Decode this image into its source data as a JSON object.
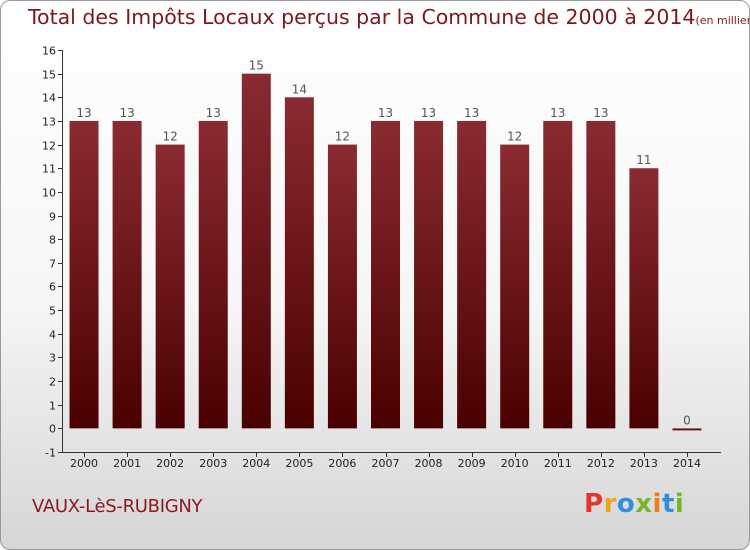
{
  "title": "Total des Impôts Locaux perçus par la Commune de 2000 à 2014",
  "unit_note": "(en milliers d'€)",
  "commune": "VAUX-LèS-RUBIGNY",
  "logo": {
    "text": "Proxiti",
    "letters": [
      "P",
      "r",
      "o",
      "x",
      "i",
      "t",
      "i"
    ]
  },
  "colors": {
    "bar_top": "#8a2b32",
    "bar_bottom": "#4a0000",
    "title": "#7a1a1e"
  },
  "chart_data": {
    "type": "bar",
    "title": "Total des Impôts Locaux perçus par la Commune de 2000 à 2014",
    "xlabel": "",
    "ylabel": "",
    "categories": [
      "2000",
      "2001",
      "2002",
      "2003",
      "2004",
      "2005",
      "2006",
      "2007",
      "2008",
      "2009",
      "2010",
      "2011",
      "2012",
      "2013",
      "2014"
    ],
    "values": [
      13,
      13,
      12,
      13,
      15,
      14,
      12,
      13,
      13,
      13,
      12,
      13,
      13,
      11,
      0
    ],
    "ylim": [
      -1,
      16
    ],
    "yticks": [
      -1,
      0,
      1,
      2,
      3,
      4,
      5,
      6,
      7,
      8,
      9,
      10,
      11,
      12,
      13,
      14,
      15,
      16
    ],
    "grid": false,
    "legend": "none"
  }
}
